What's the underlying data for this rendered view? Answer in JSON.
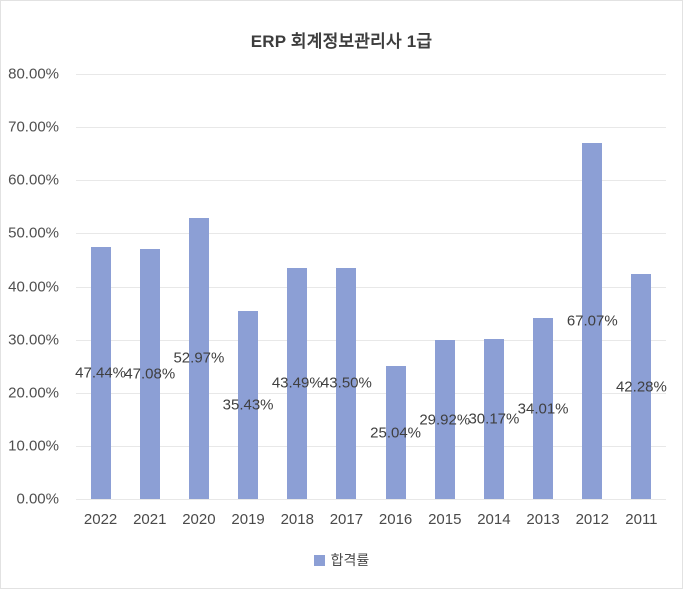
{
  "chart_data": {
    "type": "bar",
    "title": "ERP 회계정보관리사 1급",
    "categories": [
      "2022",
      "2021",
      "2020",
      "2019",
      "2018",
      "2017",
      "2016",
      "2015",
      "2014",
      "2013",
      "2012",
      "2011"
    ],
    "series": [
      {
        "name": "합격률",
        "values": [
          47.44,
          47.08,
          52.97,
          35.43,
          43.49,
          43.5,
          25.04,
          29.92,
          30.17,
          34.01,
          67.07,
          42.28
        ],
        "labels": [
          "47.44%",
          "47.08%",
          "52.97%",
          "35.43%",
          "43.49%",
          "43.50%",
          "25.04%",
          "29.92%",
          "30.17%",
          "34.01%",
          "67.07%",
          "42.28%"
        ]
      }
    ],
    "xlabel": "",
    "ylabel": "",
    "ylim": [
      0,
      80
    ],
    "y_tick_labels": [
      "0.00%",
      "10.00%",
      "20.00%",
      "30.00%",
      "40.00%",
      "50.00%",
      "60.00%",
      "70.00%",
      "80.00%"
    ],
    "y_tick_values": [
      0,
      10,
      20,
      30,
      40,
      50,
      60,
      70,
      80
    ],
    "grid": "horizontal",
    "legend_position": "bottom",
    "data_label_position": "inside-center",
    "colors": {
      "bar": "#8C9FD5",
      "gridline": "#e8e8e8",
      "title_text": "#3d3d3d",
      "axis_text": "#4f4f4f",
      "data_label_text": "#3f3f3f",
      "frame_border": "#e2e2e2",
      "background": "#ffffff"
    }
  },
  "legend": {
    "label": "합격률"
  }
}
